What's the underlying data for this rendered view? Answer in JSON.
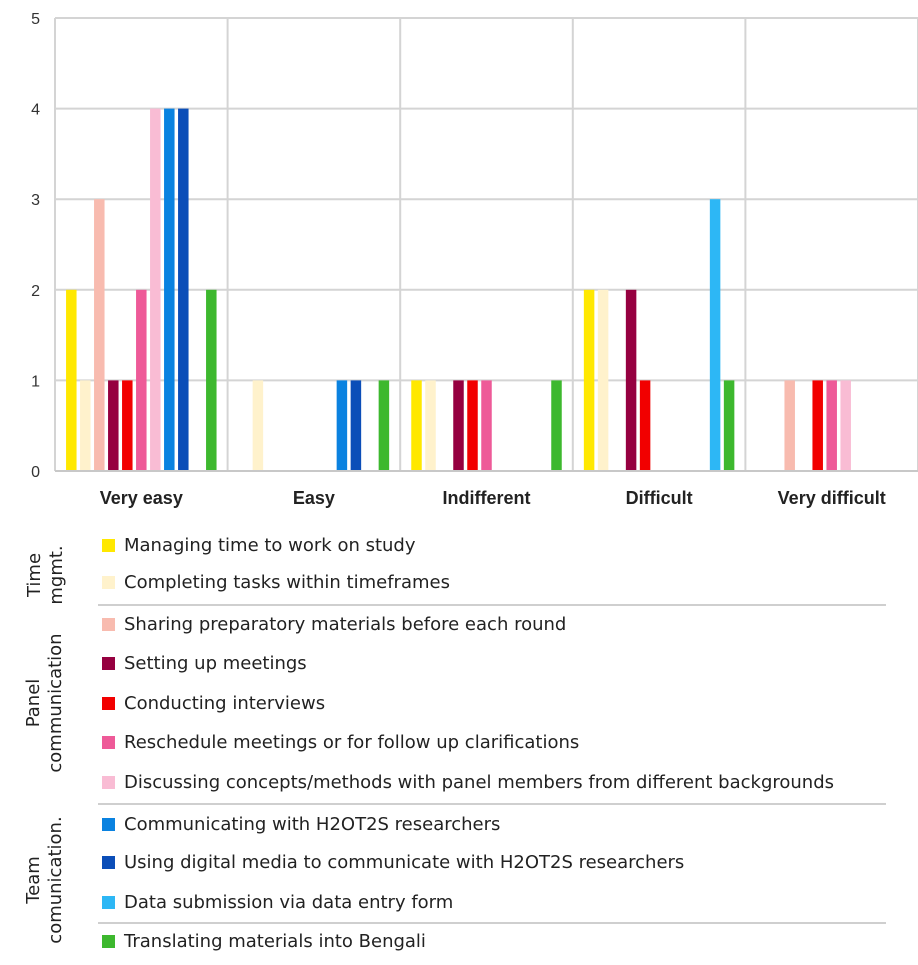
{
  "chart_data": {
    "type": "bar",
    "categories": [
      "Very easy",
      "Easy",
      "Indifferent",
      "Difficult",
      "Very difficult"
    ],
    "ylim": [
      0,
      5
    ],
    "yticks": [
      "0",
      "1",
      "2",
      "3",
      "4",
      "5"
    ],
    "grid": true,
    "legend_position": "bottom",
    "series": [
      {
        "name": "Managing time to work on study",
        "color": "#FFE800",
        "values": [
          2,
          0,
          1,
          2,
          0
        ]
      },
      {
        "name": "Completing tasks within timeframes",
        "color": "#FFF2CC",
        "values": [
          1,
          1,
          1,
          2,
          0
        ]
      },
      {
        "name": "Sharing preparatory materials before each round",
        "color": "#F8BBAF",
        "values": [
          3,
          0,
          0,
          0,
          1
        ]
      },
      {
        "name": "Setting up meetings",
        "color": "#960040",
        "values": [
          1,
          0,
          1,
          2,
          0
        ]
      },
      {
        "name": "Conducting interviews",
        "color": "#F20000",
        "values": [
          1,
          0,
          1,
          1,
          1
        ]
      },
      {
        "name": "Reschedule meetings or for follow up clarifications",
        "color": "#EE5A98",
        "values": [
          2,
          0,
          1,
          0,
          1
        ]
      },
      {
        "name": "Discussing concepts/methods with panel members from different backgrounds",
        "color": "#F9BCD4",
        "values": [
          4,
          0,
          0,
          0,
          1
        ]
      },
      {
        "name": "Communicating with H2OT2S researchers",
        "color": "#0A82E0",
        "values": [
          4,
          1,
          0,
          0,
          0
        ]
      },
      {
        "name": "Using digital media to communicate with H2OT2S researchers",
        "color": "#0B4EB8",
        "values": [
          4,
          1,
          0,
          0,
          0
        ]
      },
      {
        "name": "Data submission via data entry form",
        "color": "#2DB7F5",
        "values": [
          0,
          0,
          0,
          3,
          0
        ]
      },
      {
        "name": "Translating materials into Bengali",
        "color": "#3DB82E",
        "values": [
          2,
          1,
          1,
          1,
          0
        ]
      }
    ]
  },
  "legend_groups": [
    {
      "label_line1": "Time",
      "label_line2": "mgmt."
    },
    {
      "label_line1": "Panel",
      "label_line2": "communication"
    },
    {
      "label_line1": "Team",
      "label_line2": "comunication."
    }
  ]
}
